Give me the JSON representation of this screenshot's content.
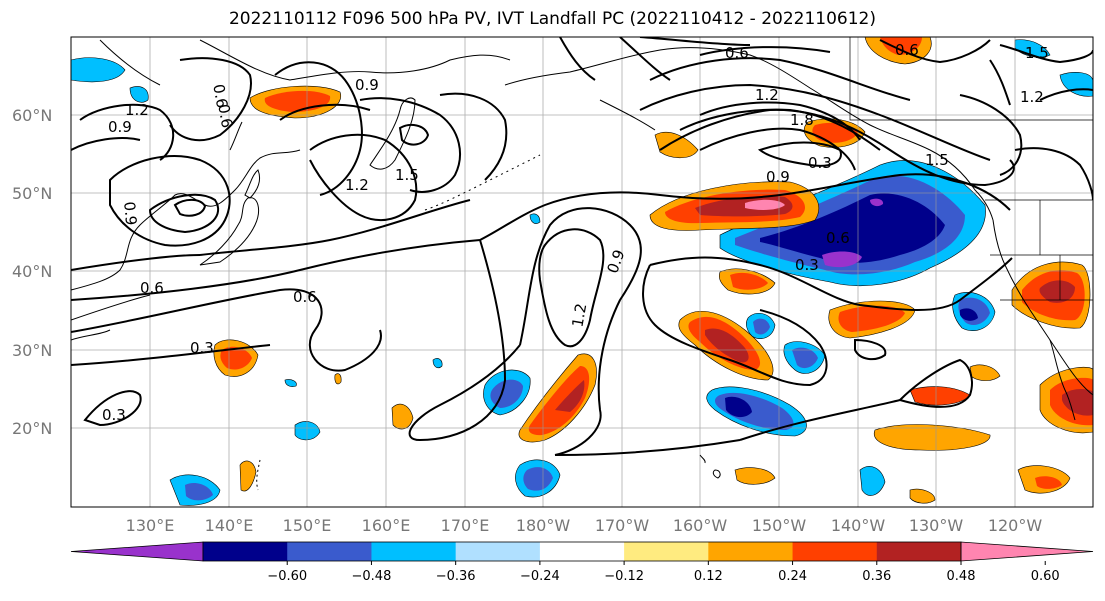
{
  "title": "2022110112 F096 500 hPa PV, IVT Landfall PC (2022110412 - 2022110612)",
  "map": {
    "lat_labels": [
      "60°N",
      "50°N",
      "40°N",
      "30°N",
      "20°N"
    ],
    "lon_labels": [
      "130°E",
      "140°E",
      "150°E",
      "160°E",
      "170°E",
      "180°W",
      "170°W",
      "160°W",
      "150°W",
      "140°W",
      "130°W",
      "120°W"
    ],
    "contour_labels": [
      "0.9",
      "0.6",
      "1.2",
      "1.5",
      "1.2",
      "0.9",
      "0.6",
      "0.3",
      "0.3",
      "0.6",
      "1.2",
      "0.9",
      "0.6",
      "0.3",
      "1.2",
      "1.8",
      "0.9",
      "0.6",
      "0.3",
      "0.6",
      "1.5",
      "1.2",
      "0.9",
      "0.6",
      "1.5"
    ],
    "colors": {
      "neg_060": "#9932cc",
      "neg_048": "#00008b",
      "neg_036": "#3a5bcd",
      "neg_024": "#00bfff",
      "neg_012": "#b0e0ff",
      "neutral": "#ffffff",
      "pos_012": "#ffeb80",
      "pos_024": "#ffa500",
      "pos_036": "#ff4000",
      "pos_048": "#b22222",
      "pos_060": "#ff85b0"
    }
  },
  "colorbar": {
    "ticks": [
      "−0.60",
      "−0.48",
      "−0.36",
      "−0.24",
      "−0.12",
      "0.12",
      "0.24",
      "0.36",
      "0.48",
      "0.60"
    ],
    "colors": [
      "#9932cc",
      "#00008b",
      "#3a5bcd",
      "#00bfff",
      "#b0e0ff",
      "#ffffff",
      "#ffeb80",
      "#ffa500",
      "#ff4000",
      "#b22222",
      "#ff85b0"
    ]
  }
}
